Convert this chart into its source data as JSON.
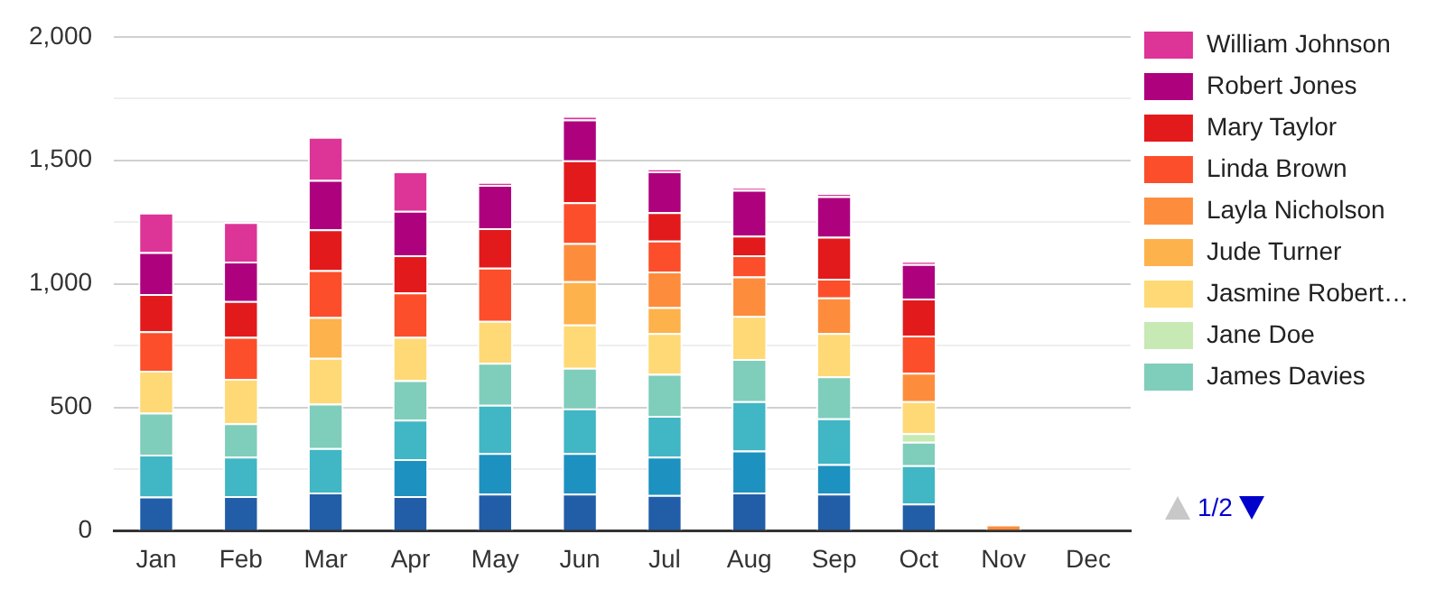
{
  "chart_data": {
    "type": "bar",
    "stacked": true,
    "categories": [
      "Jan",
      "Feb",
      "Mar",
      "Apr",
      "May",
      "Jun",
      "Jul",
      "Aug",
      "Sep",
      "Oct",
      "Nov",
      "Dec"
    ],
    "series": [
      {
        "color": "#225ea8",
        "values": [
          138,
          140,
          155,
          140,
          150,
          150,
          145,
          155,
          150,
          110,
          0,
          0
        ]
      },
      {
        "color": "#1d91c0",
        "values": [
          0,
          0,
          0,
          150,
          165,
          165,
          155,
          170,
          120,
          0,
          0,
          0
        ]
      },
      {
        "color": "#41b6c4",
        "values": [
          170,
          160,
          180,
          160,
          195,
          180,
          165,
          200,
          185,
          155,
          0,
          0
        ]
      },
      {
        "name": "James Davies",
        "color": "#7fcdbb",
        "values": [
          170,
          135,
          180,
          160,
          170,
          165,
          170,
          170,
          170,
          95,
          0,
          0
        ]
      },
      {
        "name": "Jane Doe",
        "color": "#c7e9b4",
        "values": [
          0,
          0,
          0,
          0,
          0,
          0,
          0,
          0,
          0,
          35,
          0,
          0
        ]
      },
      {
        "name": "Jasmine Robert…",
        "color": "#fed976",
        "values": [
          170,
          180,
          185,
          175,
          170,
          175,
          165,
          175,
          175,
          130,
          0,
          0
        ]
      },
      {
        "name": "Jude Turner",
        "color": "#feb24c",
        "values": [
          0,
          0,
          165,
          0,
          0,
          175,
          105,
          0,
          0,
          0,
          0,
          0
        ]
      },
      {
        "name": "Layla Nicholson",
        "color": "#fd8d3c",
        "values": [
          0,
          0,
          0,
          0,
          0,
          155,
          145,
          160,
          145,
          115,
          25,
          0
        ]
      },
      {
        "name": "Linda Brown",
        "color": "#fc4e2a",
        "values": [
          160,
          170,
          190,
          180,
          215,
          165,
          125,
          85,
          75,
          150,
          0,
          0
        ]
      },
      {
        "name": "Mary Taylor",
        "color": "#e31a1c",
        "values": [
          150,
          145,
          165,
          150,
          160,
          170,
          115,
          80,
          170,
          150,
          0,
          0
        ]
      },
      {
        "name": "Robert Jones",
        "color": "#ae017e",
        "values": [
          170,
          160,
          200,
          180,
          175,
          165,
          165,
          185,
          165,
          140,
          0,
          0
        ]
      },
      {
        "name": "William Johnson",
        "color": "#dd3497",
        "values": [
          160,
          160,
          175,
          160,
          10,
          15,
          10,
          10,
          10,
          10,
          0,
          0
        ]
      }
    ],
    "ylim": [
      0,
      2000
    ],
    "yticks": [
      {
        "value": 0,
        "label": "0"
      },
      {
        "value": 250,
        "label": null
      },
      {
        "value": 500,
        "label": "500"
      },
      {
        "value": 750,
        "label": null
      },
      {
        "value": 1000,
        "label": "1,000"
      },
      {
        "value": 1250,
        "label": null
      },
      {
        "value": 1500,
        "label": "1,500"
      },
      {
        "value": 1750,
        "label": null
      },
      {
        "value": 2000,
        "label": "2,000"
      }
    ],
    "grid": "y",
    "legend": "right",
    "annotations": [
      "1/2"
    ]
  }
}
